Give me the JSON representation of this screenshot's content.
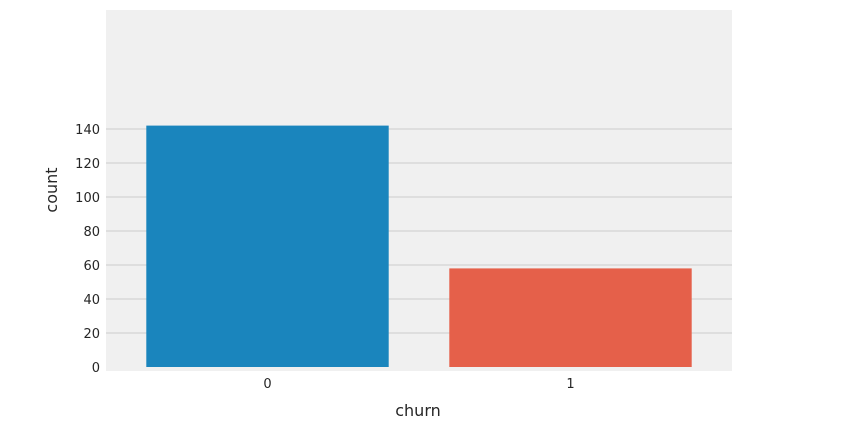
{
  "chart_data": {
    "type": "bar",
    "categories": [
      "0",
      "1"
    ],
    "values": [
      142,
      58
    ],
    "xlabel": "churn",
    "ylabel": "count",
    "ylim": [
      0,
      150
    ],
    "yticks": [
      0,
      20,
      40,
      60,
      80,
      100,
      120,
      140
    ],
    "grid": true,
    "colors": [
      "#1a85bd",
      "#e5604a"
    ],
    "background": "#f0f0f0",
    "grid_color": "#cbcbcb"
  }
}
